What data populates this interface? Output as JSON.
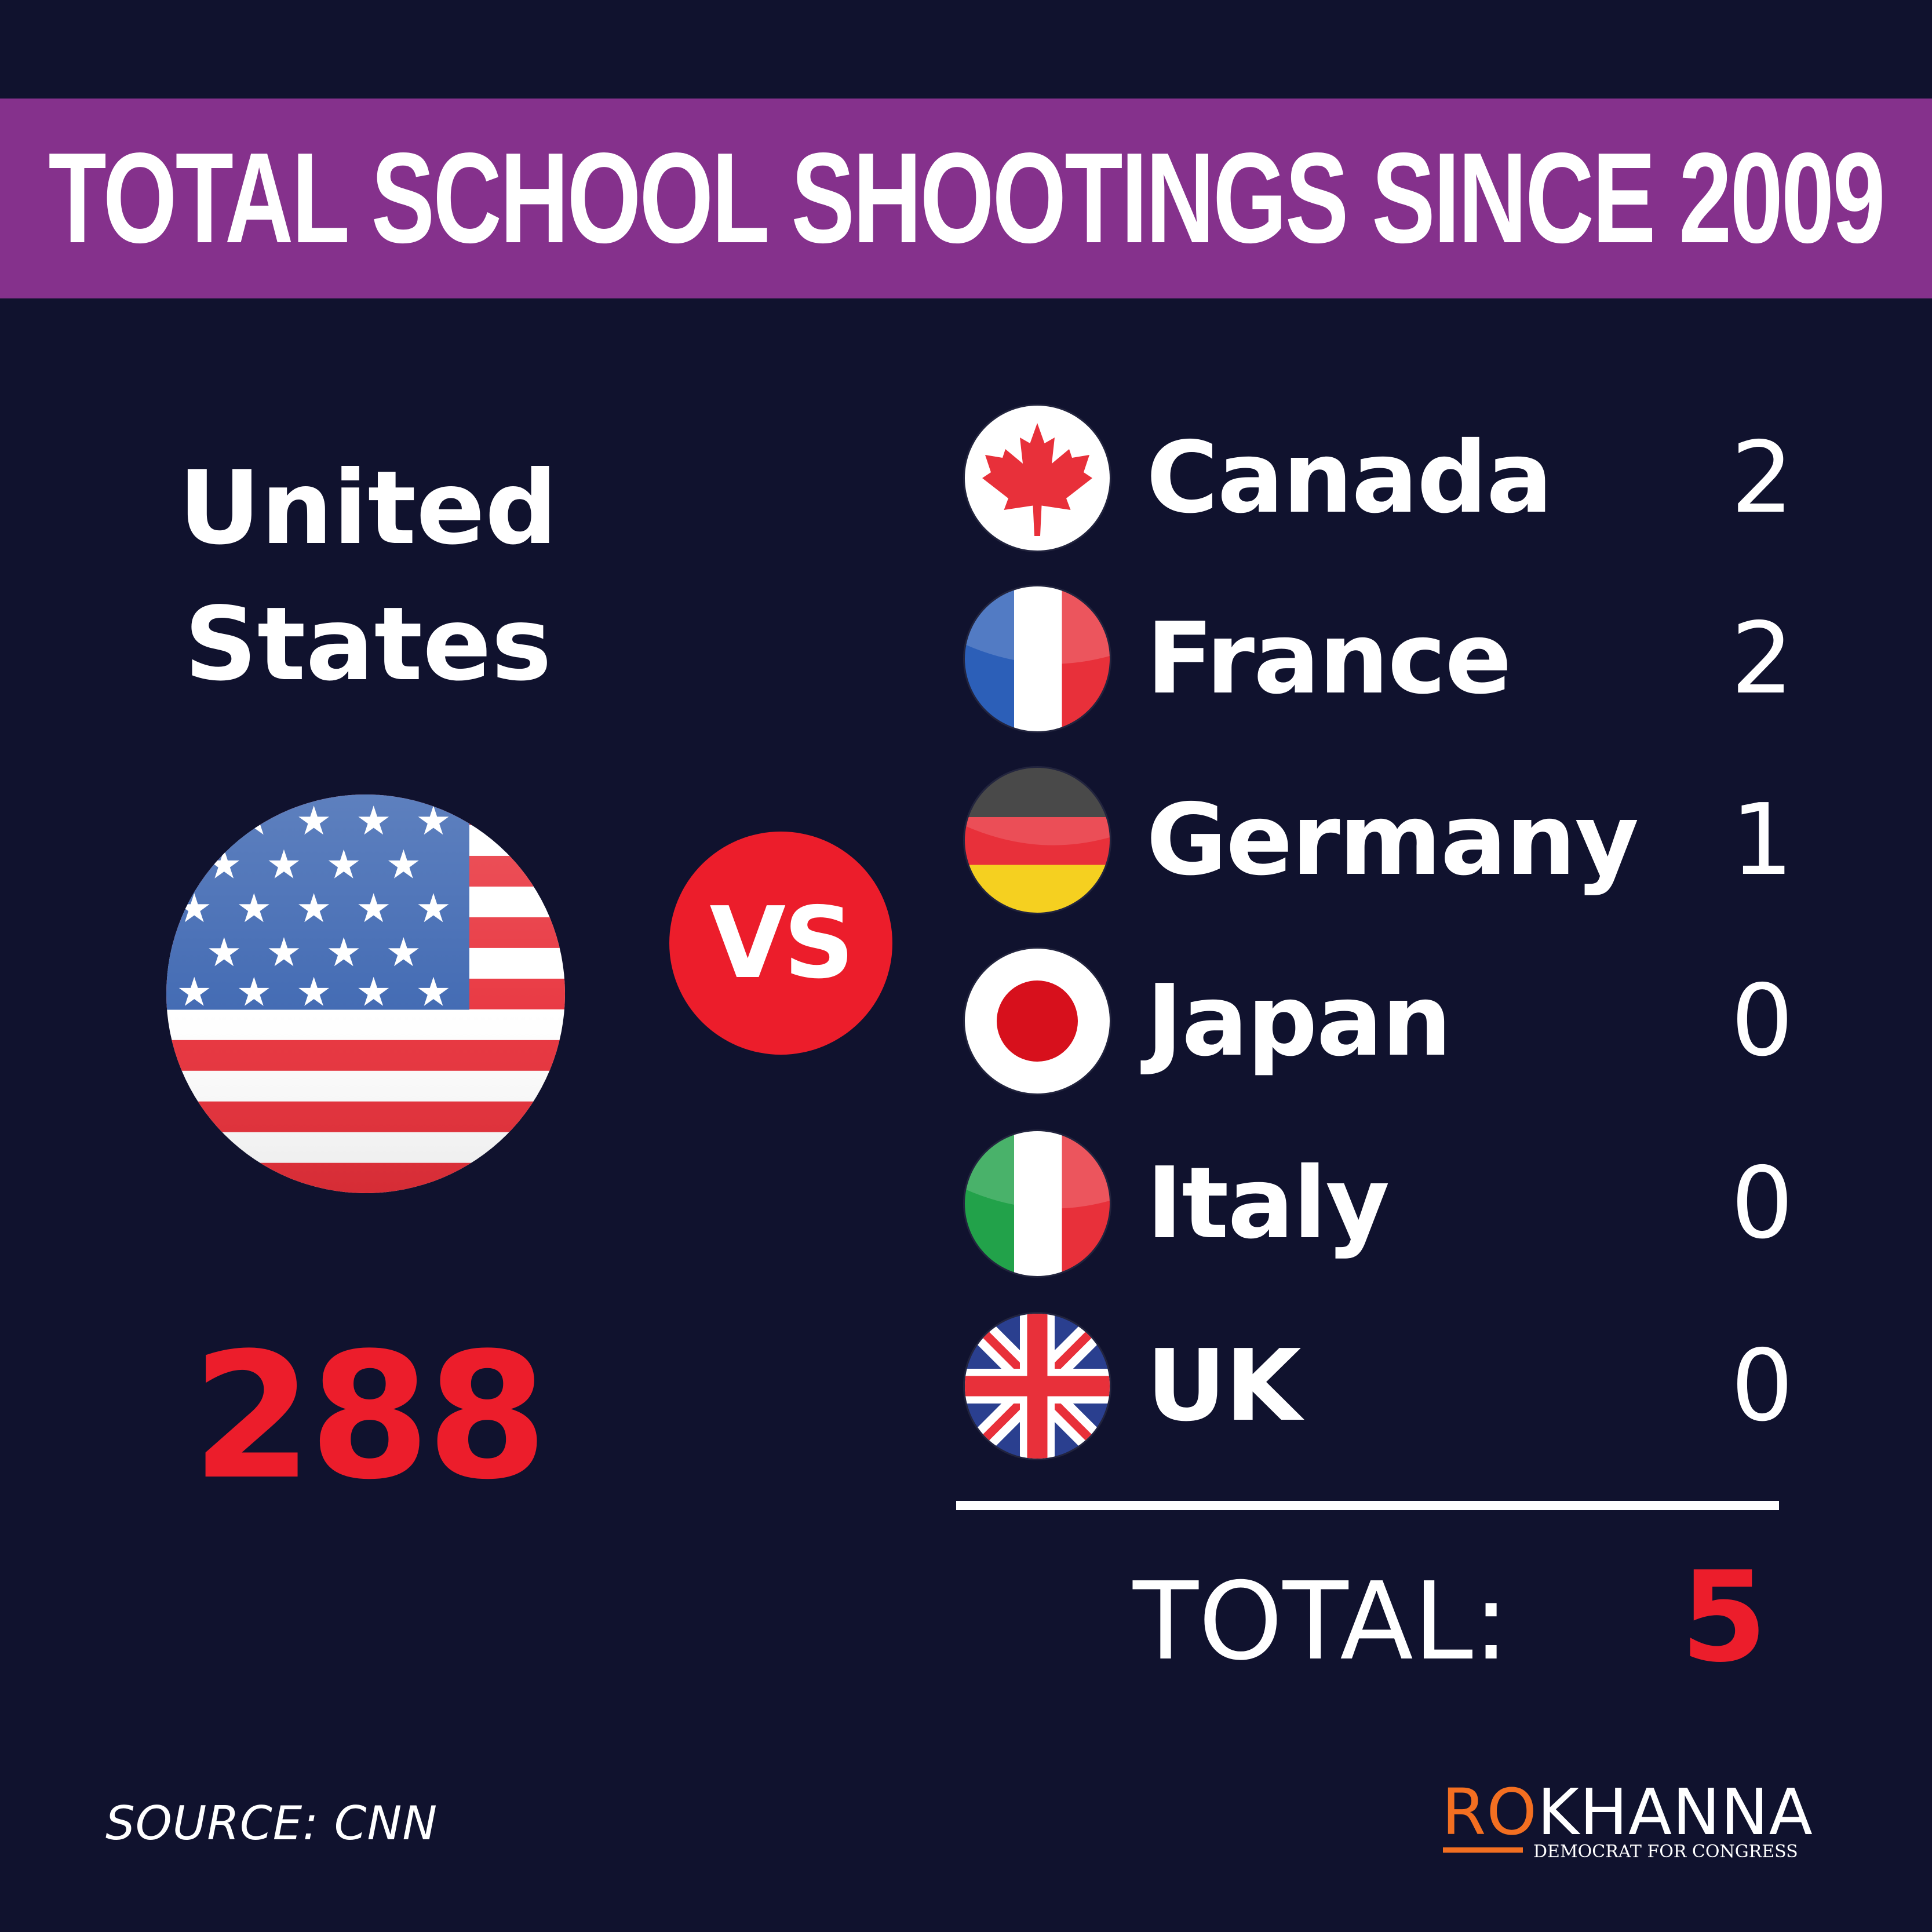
{
  "header": {
    "title": "TOTAL SCHOOL SHOOTINGS SINCE 2009"
  },
  "us": {
    "name_line1": "United",
    "name_line2": "States",
    "total": "288",
    "flag_icon": "usa-flag-icon"
  },
  "vs_label": "VS",
  "countries": [
    {
      "name": "Canada",
      "value": "2",
      "flag_icon": "canada-flag-icon"
    },
    {
      "name": "France",
      "value": "2",
      "flag_icon": "france-flag-icon"
    },
    {
      "name": "Germany",
      "value": "1",
      "flag_icon": "germany-flag-icon"
    },
    {
      "name": "Japan",
      "value": "0",
      "flag_icon": "japan-flag-icon"
    },
    {
      "name": "Italy",
      "value": "0",
      "flag_icon": "italy-flag-icon"
    },
    {
      "name": "UK",
      "value": "0",
      "flag_icon": "uk-flag-icon"
    }
  ],
  "total": {
    "label": "TOTAL:",
    "value": "5"
  },
  "source": "SOURCE: CNN",
  "logo": {
    "ro": "RO",
    "khanna": "KHANNA",
    "tagline": "DEMOCRAT FOR CONGRESS"
  },
  "colors": {
    "background": "#10122e",
    "banner": "#85318c",
    "accent_red": "#ec1d2b",
    "logo_orange": "#f36f21"
  }
}
